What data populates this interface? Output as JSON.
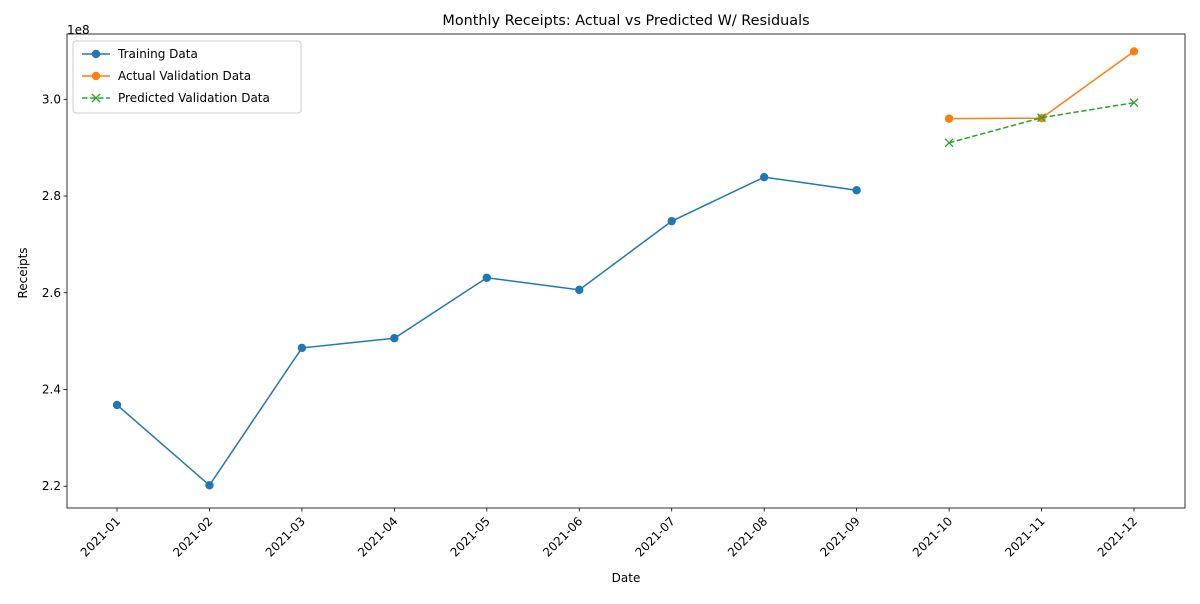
{
  "chart_data": {
    "type": "line",
    "title": "Monthly Receipts: Actual vs Predicted W/ Residuals",
    "xlabel": "Date",
    "ylabel": "Receipts",
    "y_offset_label": "1e8",
    "x_categories": [
      "2021-01",
      "2021-02",
      "2021-03",
      "2021-04",
      "2021-05",
      "2021-06",
      "2021-07",
      "2021-08",
      "2021-09",
      "2021-10",
      "2021-11",
      "2021-12"
    ],
    "ylim": [
      215500000,
      313500000
    ],
    "y_ticks": [
      220000000,
      240000000,
      260000000,
      280000000,
      300000000
    ],
    "y_tick_labels": [
      "2.2",
      "2.4",
      "2.6",
      "2.8",
      "3.0"
    ],
    "grid": false,
    "legend_position": "upper-left",
    "series": [
      {
        "name": "Training Data",
        "color": "#1f77b4",
        "line_style": "solid",
        "marker": "circle",
        "x": [
          "2021-01",
          "2021-02",
          "2021-03",
          "2021-04",
          "2021-05",
          "2021-06",
          "2021-07",
          "2021-08",
          "2021-09"
        ],
        "values": [
          236800000,
          220200000,
          248600000,
          250600000,
          263100000,
          260600000,
          274800000,
          283900000,
          281200000
        ]
      },
      {
        "name": "Actual Validation Data",
        "color": "#ff7f0e",
        "line_style": "solid",
        "marker": "circle",
        "x": [
          "2021-10",
          "2021-11",
          "2021-12"
        ],
        "values": [
          296000000,
          296100000,
          309900000
        ]
      },
      {
        "name": "Predicted Validation Data",
        "color": "#2ca02c",
        "line_style": "dashed",
        "marker": "x",
        "x": [
          "2021-10",
          "2021-11",
          "2021-12"
        ],
        "values": [
          291000000,
          296200000,
          299300000
        ]
      }
    ]
  }
}
